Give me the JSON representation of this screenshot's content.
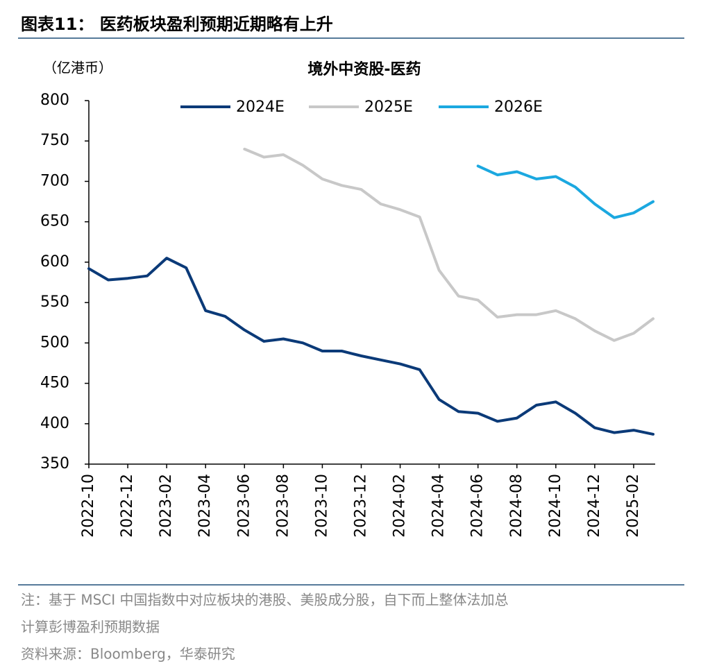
{
  "header": {
    "title": "图表11：  医药板块盈利预期近期略有上升"
  },
  "chart_data": {
    "type": "line",
    "title": "境外中资股-医药",
    "y_label": "（亿港币）",
    "categories": [
      "2022-10",
      null,
      "2022-12",
      null,
      "2023-02",
      null,
      "2023-04",
      null,
      "2023-06",
      null,
      "2023-08",
      null,
      "2023-10",
      null,
      "2023-12",
      null,
      "2024-02",
      null,
      "2024-04",
      null,
      "2024-06",
      null,
      "2024-08",
      null,
      "2024-10",
      null,
      "2024-12",
      null,
      "2025-02",
      null
    ],
    "series": [
      {
        "name": "2024E",
        "color": "#0b3a78",
        "values": [
          592,
          578,
          580,
          583,
          605,
          593,
          540,
          533,
          516,
          502,
          505,
          500,
          490,
          490,
          484,
          479,
          474,
          467,
          430,
          415,
          413,
          403,
          407,
          423,
          427,
          413,
          395,
          389,
          392,
          387
        ]
      },
      {
        "name": "2025E",
        "color": "#c8c8c8",
        "values": [
          null,
          null,
          null,
          null,
          null,
          null,
          null,
          null,
          740,
          730,
          733,
          720,
          703,
          695,
          690,
          672,
          665,
          656,
          590,
          558,
          553,
          532,
          535,
          535,
          540,
          530,
          515,
          503,
          512,
          530
        ]
      },
      {
        "name": "2026E",
        "color": "#1ba8e0",
        "values": [
          null,
          null,
          null,
          null,
          null,
          null,
          null,
          null,
          null,
          null,
          null,
          null,
          null,
          null,
          null,
          null,
          null,
          null,
          null,
          null,
          719,
          708,
          712,
          703,
          706,
          693,
          672,
          655,
          661,
          675
        ]
      }
    ],
    "ylim": [
      350,
      800
    ],
    "yticks": [
      350,
      400,
      450,
      500,
      550,
      600,
      650,
      700,
      750,
      800
    ],
    "grid": false,
    "legend": "top"
  },
  "footer": {
    "notes": [
      "注：基于 MSCI 中国指数中对应板块的港股、美股成分股，自下而上整体法加总",
      "计算彭博盈利预期数据"
    ],
    "source": "资料来源：Bloomberg，华泰研究"
  }
}
